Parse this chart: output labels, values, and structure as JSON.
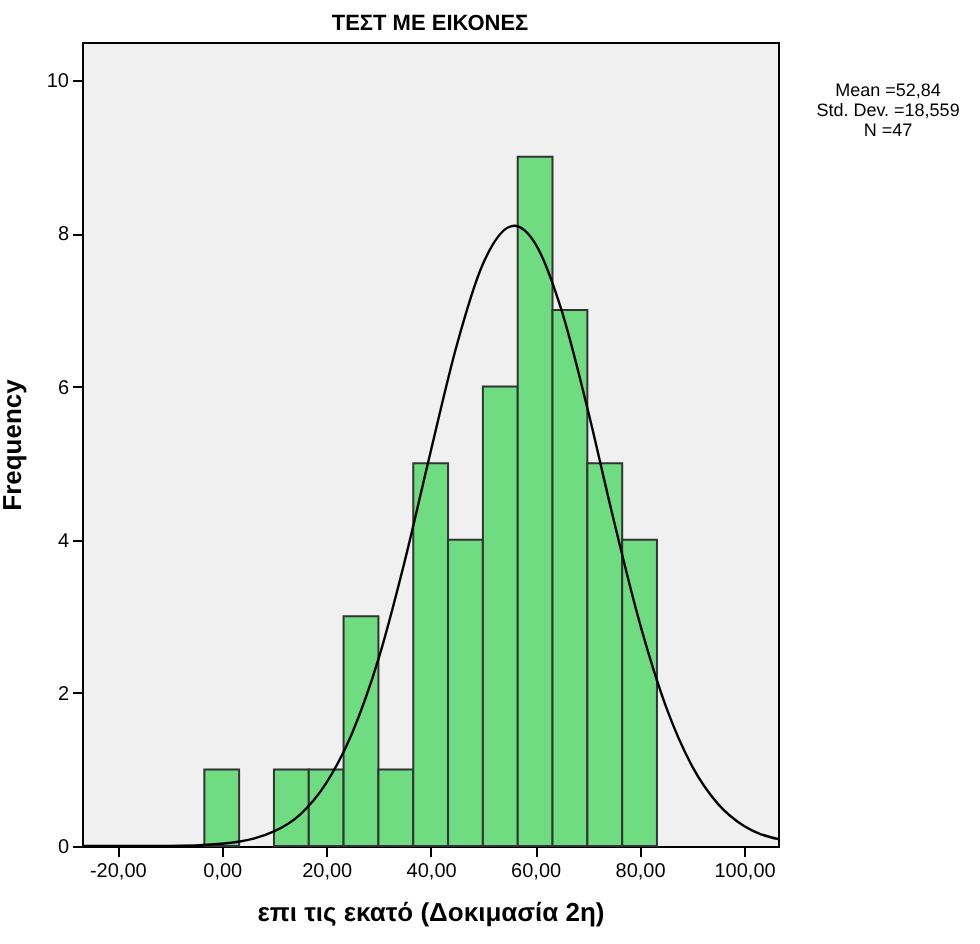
{
  "chart_data": {
    "type": "histogram",
    "title": "ΤΕΣΤ ΜΕ ΕΙΚΟΝΕΣ",
    "xlabel": "επι τις εκατό (Δοκιμασία 2η)",
    "ylabel": "Frequency",
    "bins": [
      -3.33,
      3.33,
      10,
      16.67,
      23.33,
      30,
      36.67,
      43.33,
      50,
      56.67,
      63.33,
      70,
      76.67,
      83.33
    ],
    "values": [
      1,
      0,
      1,
      1,
      3,
      1,
      5,
      4,
      6,
      9,
      7,
      5,
      4
    ],
    "color": "#6fdc82",
    "series": [
      {
        "type": "line",
        "color": "#000000",
        "x": [
          -26.75,
          -10,
          0,
          10,
          15,
          20,
          25,
          30,
          35,
          40,
          45,
          50,
          56,
          60,
          65,
          70,
          75,
          80,
          85,
          90,
          95,
          100,
          106.5
        ],
        "values": [
          0,
          0,
          0.03,
          0.19,
          0.41,
          0.82,
          1.48,
          2.44,
          3.71,
          5.15,
          6.54,
          7.6,
          8.1,
          7.87,
          7.01,
          5.72,
          4.27,
          2.92,
          1.83,
          1.05,
          0.55,
          0.26,
          0.09
        ]
      }
    ],
    "xlim": [
      -26.75,
      106.5
    ],
    "ylim": [
      0,
      10.5
    ],
    "xticks": [
      {
        "value": -20,
        "label": "-20,00"
      },
      {
        "value": 0,
        "label": "0,00"
      },
      {
        "value": 20,
        "label": "20,00"
      },
      {
        "value": 40,
        "label": "40,00"
      },
      {
        "value": 60,
        "label": "60,00"
      },
      {
        "value": 80,
        "label": "80,00"
      },
      {
        "value": 100,
        "label": "100,00"
      }
    ],
    "yticks": [
      0,
      2,
      4,
      6,
      8,
      10
    ],
    "grid": false,
    "annotations": [
      "Mean =52,84",
      "Std. Dev. =18,559",
      "N =47"
    ]
  }
}
